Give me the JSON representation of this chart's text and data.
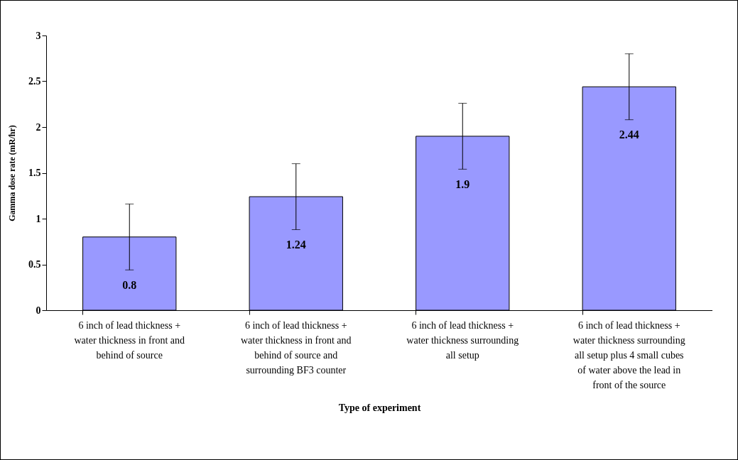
{
  "chart_data": {
    "type": "bar",
    "xlabel": "Type of experiment",
    "ylabel": "Gamma dose rate (mR/hr)",
    "categories": [
      "6 inch of lead thickness + water thickness in front and behind of source",
      "6 inch of lead thickness + water thickness in front and behind of source and surrounding BF3 counter",
      "6 inch of lead thickness + water thickness surrounding all setup",
      "6 inch of lead thickness + water thickness surrounding all setup plus 4 small cubes of water above the lead in front of the source"
    ],
    "values": [
      0.8,
      1.24,
      1.9,
      2.44
    ],
    "errors": [
      0.36,
      0.36,
      0.36,
      0.36
    ],
    "color": "#9999ff",
    "ylim": [
      0,
      3
    ],
    "yticks": [
      0,
      0.5,
      1,
      1.5,
      2,
      2.5,
      3
    ],
    "data_labels": true,
    "grid": false
  }
}
